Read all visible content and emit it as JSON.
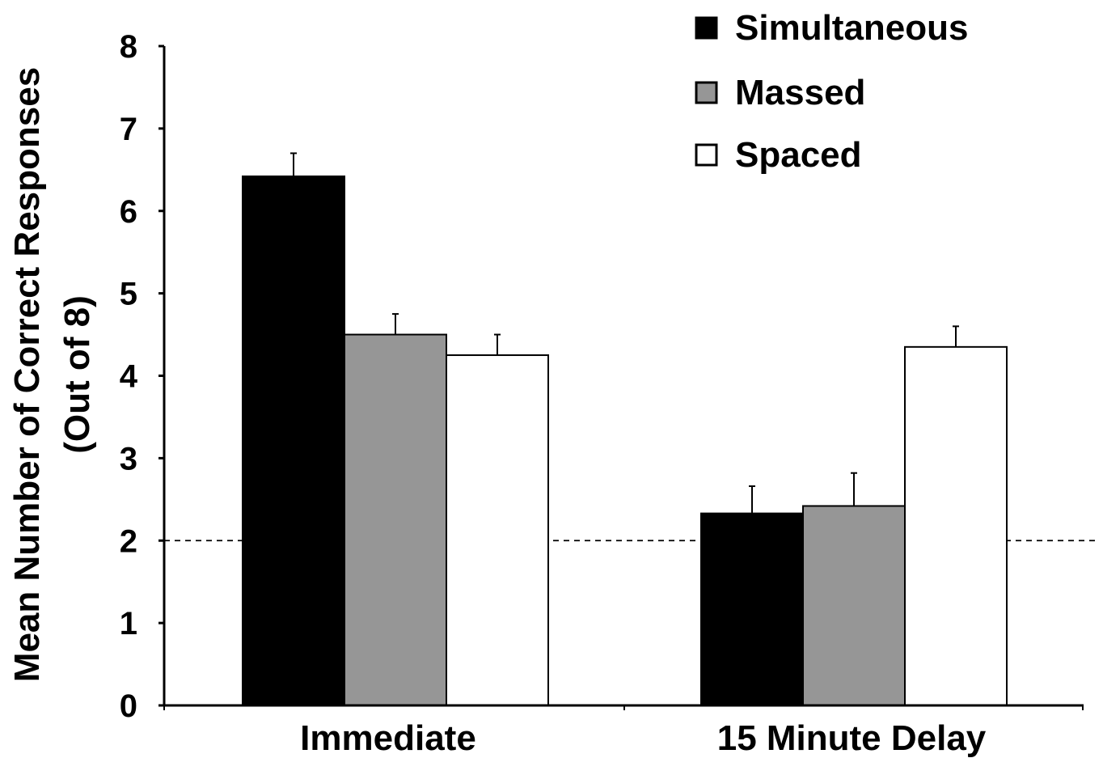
{
  "chart_data": {
    "type": "bar",
    "title": "",
    "ylabel_line1": "Mean Number of Correct Responses",
    "ylabel_line2": "(Out of 8)",
    "xlabel": "",
    "categories": [
      "Immediate",
      "15 Minute Delay"
    ],
    "series": [
      {
        "name": "Simultaneous",
        "values": [
          6.42,
          2.33
        ],
        "errors": [
          0.28,
          0.33
        ],
        "color": "#000000"
      },
      {
        "name": "Massed",
        "values": [
          4.5,
          2.42
        ],
        "errors": [
          0.25,
          0.4
        ],
        "color": "#969696"
      },
      {
        "name": "Spaced",
        "values": [
          4.25,
          4.35
        ],
        "errors": [
          0.25,
          0.25
        ],
        "color": "#ffffff"
      }
    ],
    "yticks": [
      "0",
      "1",
      "2",
      "3",
      "4",
      "5",
      "6",
      "7",
      "8"
    ],
    "ylim": [
      0,
      8
    ],
    "reference_line": 2,
    "grid": false,
    "legend_position": "top-right"
  }
}
